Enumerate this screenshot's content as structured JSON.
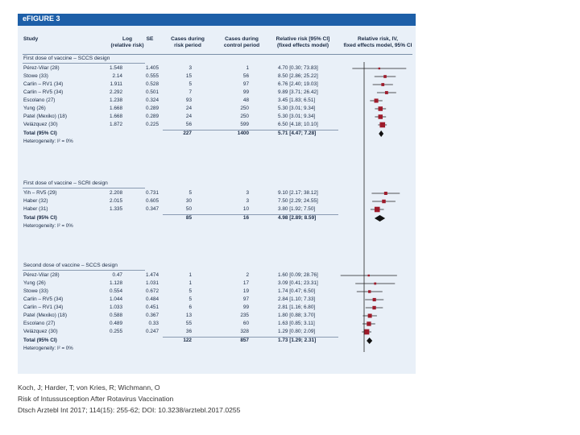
{
  "figure": {
    "title": "eFIGURE 3",
    "headers": {
      "study": "Study",
      "log": "Log\n(relative risk)",
      "se": "SE",
      "cases_risk": "Cases during\nrisk period",
      "cases_control": "Cases during\ncontrol period",
      "rr_ci": "Relative risk [95% CI]\n(fixed effects model)",
      "rr_iv": "Relative risk, IV,\nfixed effects model, 95% CI"
    }
  },
  "colors": {
    "title_bar": "#1d5fa8",
    "panel": "#e9f0f8",
    "square": "#9e1b2b",
    "diamond": "#111111",
    "text": "#1a2a44"
  },
  "chart_data": {
    "type": "forest",
    "title": "eFIGURE 3",
    "xscale": "log",
    "xlim": [
      0.01,
      100
    ],
    "reference_line": 1,
    "sections": [
      {
        "title": "First dose of vaccine – SCCS design",
        "studies": [
          {
            "name": "Pérez-Vilar (28)",
            "log_rr": "1.548",
            "se": "1.405",
            "cases_risk": "3",
            "cases_control": "1",
            "rr_text": "4.70 [0.30; 73.83]",
            "rr": 4.7,
            "lo": 0.3,
            "hi": 73.83
          },
          {
            "name": "Stowe (33)",
            "log_rr": "2.14",
            "se": "0.555",
            "cases_risk": "15",
            "cases_control": "56",
            "rr_text": "8.50 [2.86; 25.22]",
            "rr": 8.5,
            "lo": 2.86,
            "hi": 25.22
          },
          {
            "name": "Carlin – RV1 (34)",
            "log_rr": "1.911",
            "se": "0.528",
            "cases_risk": "5",
            "cases_control": "97",
            "rr_text": "6.76 [2.40; 19.03]",
            "rr": 6.76,
            "lo": 2.4,
            "hi": 19.03
          },
          {
            "name": "Carlin – RV5 (34)",
            "log_rr": "2.292",
            "se": "0.501",
            "cases_risk": "7",
            "cases_control": "99",
            "rr_text": "9.89 [3.71; 26.42]",
            "rr": 9.89,
            "lo": 3.71,
            "hi": 26.42
          },
          {
            "name": "Escolano (27)",
            "log_rr": "1.238",
            "se": "0.324",
            "cases_risk": "93",
            "cases_control": "48",
            "rr_text": "3.45 [1.83; 6.51]",
            "rr": 3.45,
            "lo": 1.83,
            "hi": 6.51
          },
          {
            "name": "Yung (26)",
            "log_rr": "1.668",
            "se": "0.289",
            "cases_risk": "24",
            "cases_control": "250",
            "rr_text": "5.30 [3.01; 9.34]",
            "rr": 5.3,
            "lo": 3.01,
            "hi": 9.34
          },
          {
            "name": "Patel (Mexiko) (18)",
            "log_rr": "1.668",
            "se": "0.289",
            "cases_risk": "24",
            "cases_control": "250",
            "rr_text": "5.30 [3.01; 9.34]",
            "rr": 5.3,
            "lo": 3.01,
            "hi": 9.34
          },
          {
            "name": "Velázquez (30)",
            "log_rr": "1.872",
            "se": "0.225",
            "cases_risk": "56",
            "cases_control": "599",
            "rr_text": "6.50 [4.18; 10.10]",
            "rr": 6.5,
            "lo": 4.18,
            "hi": 10.1
          }
        ],
        "total": {
          "name": "Total (95% CI)",
          "cases_risk": "227",
          "cases_control": "1400",
          "rr_text": "5.71 [4.47; 7.28]",
          "rr": 5.71,
          "lo": 4.47,
          "hi": 7.28
        },
        "heterogeneity": "Heterogeneity: I² = 0%"
      },
      {
        "title": "First dose of vaccine – SCRI design",
        "studies": [
          {
            "name": "Yih – RV5 (29)",
            "log_rr": "2.208",
            "se": "0.731",
            "cases_risk": "5",
            "cases_control": "3",
            "rr_text": "9.10 [2.17; 38.12]",
            "rr": 9.1,
            "lo": 2.17,
            "hi": 38.12
          },
          {
            "name": "Haber (32)",
            "log_rr": "2.015",
            "se": "0.605",
            "cases_risk": "30",
            "cases_control": "3",
            "rr_text": "7.50 [2.29; 24.55]",
            "rr": 7.5,
            "lo": 2.29,
            "hi": 24.55
          },
          {
            "name": "Haber (31)",
            "log_rr": "1.335",
            "se": "0.347",
            "cases_risk": "50",
            "cases_control": "10",
            "rr_text": "3.80 [1.92; 7.50]",
            "rr": 3.8,
            "lo": 1.92,
            "hi": 7.5
          }
        ],
        "total": {
          "name": "Total (95% CI)",
          "cases_risk": "85",
          "cases_control": "16",
          "rr_text": "4.98 [2.89; 8.59]",
          "rr": 4.98,
          "lo": 2.89,
          "hi": 8.59
        },
        "heterogeneity": "Heterogeneity: I² = 0%"
      },
      {
        "title": "Second dose of vaccine – SCCS design",
        "studies": [
          {
            "name": "Pérez-Vilar (28)",
            "log_rr": "0.47",
            "se": "1.474",
            "cases_risk": "1",
            "cases_control": "2",
            "rr_text": "1.60 [0.09; 28.76]",
            "rr": 1.6,
            "lo": 0.09,
            "hi": 28.76
          },
          {
            "name": "Yung (26)",
            "log_rr": "1.128",
            "se": "1.031",
            "cases_risk": "1",
            "cases_control": "17",
            "rr_text": "3.09 [0.41; 23.31]",
            "rr": 3.09,
            "lo": 0.41,
            "hi": 23.31
          },
          {
            "name": "Stowe (33)",
            "log_rr": "0.554",
            "se": "0.672",
            "cases_risk": "5",
            "cases_control": "19",
            "rr_text": "1.74 [0.47; 6.50]",
            "rr": 1.74,
            "lo": 0.47,
            "hi": 6.5
          },
          {
            "name": "Carlin – RV5 (34)",
            "log_rr": "1.044",
            "se": "0.484",
            "cases_risk": "5",
            "cases_control": "97",
            "rr_text": "2.84 [1.10; 7.33]",
            "rr": 2.84,
            "lo": 1.1,
            "hi": 7.33
          },
          {
            "name": "Carlin – RV1 (34)",
            "log_rr": "1.033",
            "se": "0.451",
            "cases_risk": "6",
            "cases_control": "99",
            "rr_text": "2.81 [1.16; 6.80]",
            "rr": 2.81,
            "lo": 1.16,
            "hi": 6.8
          },
          {
            "name": "Patel (Mexiko) (18)",
            "log_rr": "0.588",
            "se": "0.367",
            "cases_risk": "13",
            "cases_control": "235",
            "rr_text": "1.80 [0.88; 3.70]",
            "rr": 1.8,
            "lo": 0.88,
            "hi": 3.7
          },
          {
            "name": "Escolano (27)",
            "log_rr": "0.489",
            "se": "0.33",
            "cases_risk": "55",
            "cases_control": "60",
            "rr_text": "1.63 [0.85; 3.11]",
            "rr": 1.63,
            "lo": 0.85,
            "hi": 3.11
          },
          {
            "name": "Velázquez (30)",
            "log_rr": "0.255",
            "se": "0.247",
            "cases_risk": "36",
            "cases_control": "328",
            "rr_text": "1.29 [0.80; 2.09]",
            "rr": 1.29,
            "lo": 0.8,
            "hi": 2.09
          }
        ],
        "total": {
          "name": "Total (95% CI)",
          "cases_risk": "122",
          "cases_control": "857",
          "rr_text": "1.73 [1.29; 2.31]",
          "rr": 1.73,
          "lo": 1.29,
          "hi": 2.31
        },
        "heterogeneity": "Heterogeneity: I² = 0%"
      }
    ]
  },
  "source": {
    "authors": "Koch, J; Harder, T; von Kries, R; Wichmann, O",
    "title": "Risk of Intussusception After Rotavirus Vaccination",
    "citation": "Dtsch Arztebl Int 2017; 114(15): 255-62; DOI: 10.3238/arztebl.2017.0255"
  }
}
